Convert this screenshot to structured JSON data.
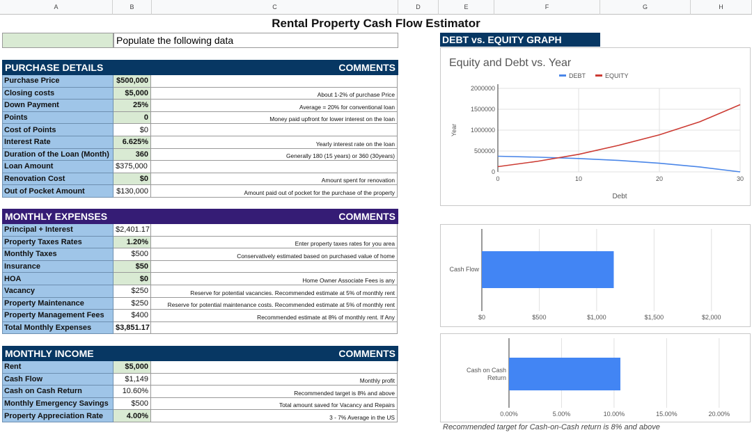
{
  "columns": [
    "A",
    "B",
    "C",
    "D",
    "E",
    "F",
    "G",
    "H"
  ],
  "title": "Rental Property Cash Flow Estimator",
  "populate_label": "Populate the following data",
  "graph_header": "DEBT vs. EQUITY GRAPH",
  "purchase": {
    "header": "PURCHASE DETAILS",
    "comments_header": "COMMENTS",
    "rows": [
      {
        "label": "Purchase Price",
        "value": "$500,000",
        "comment": "",
        "green": true
      },
      {
        "label": "Closing costs",
        "value": "$5,000",
        "comment": "About 1-2% of purchase Price",
        "green": true
      },
      {
        "label": "Down Payment",
        "value": "25%",
        "comment": "Average = 20% for conventional loan",
        "green": true
      },
      {
        "label": "Points",
        "value": "0",
        "comment": "Money paid upfront for lower interest on the loan",
        "green": true
      },
      {
        "label": "Cost of Points",
        "value": "$0",
        "comment": "",
        "green": false
      },
      {
        "label": "Interest Rate",
        "value": "6.625%",
        "comment": "Yearly interest rate on the loan",
        "green": true
      },
      {
        "label": "Duration of the Loan (Month)",
        "value": "360",
        "comment": "Generally 180 (15 years) or 360 (30years)",
        "green": true
      },
      {
        "label": "Loan Amount",
        "value": "$375,000",
        "comment": "",
        "green": false,
        "left": true
      },
      {
        "label": "Renovation Cost",
        "value": "$0",
        "comment": "Amount spent for renovation",
        "green": true
      },
      {
        "label": "Out of Pocket Amount",
        "value": "$130,000",
        "comment": "Amount paid out of pocket for the purchase of the property",
        "green": false
      }
    ]
  },
  "expenses": {
    "header": "MONTHLY EXPENSES",
    "comments_header": "COMMENTS",
    "rows": [
      {
        "label": "Principal + Interest",
        "value": "$2,401.17",
        "comment": "",
        "green": false,
        "left": true
      },
      {
        "label": "Property Taxes Rates",
        "value": "1.20%",
        "comment": "Enter property taxes rates for you area",
        "green": true
      },
      {
        "label": "Monthly Taxes",
        "value": "$500",
        "comment": "Conservatively estimated based on purchased value of home",
        "green": false
      },
      {
        "label": "Insurance",
        "value": "$50",
        "comment": "",
        "green": true
      },
      {
        "label": "HOA",
        "value": "$0",
        "comment": "Home Owner Associate Fees is any",
        "green": true
      },
      {
        "label": "Vacancy",
        "value": "$250",
        "comment": "Reserve for potential vacancies. Recommended estimate at 5% of monthly rent",
        "green": false
      },
      {
        "label": "Property Maintenance",
        "value": "$250",
        "comment": "Reserve for potential maintenance costs. Recommended estimate at 5% of monthly rent",
        "green": false
      },
      {
        "label": "Property Management Fees",
        "value": "$400",
        "comment": "Recommended estimate at 8% of monthly rent. If Any",
        "green": false
      },
      {
        "label": "Total Monthly Expenses",
        "value": "$3,851.17",
        "comment": "",
        "green": false,
        "bold": true,
        "left": true
      }
    ]
  },
  "income": {
    "header": "MONTHLY INCOME",
    "comments_header": "COMMENTS",
    "rows": [
      {
        "label": "Rent",
        "value": "$5,000",
        "comment": "",
        "green": true
      },
      {
        "label": "Cash Flow",
        "value": "$1,149",
        "comment": "Monthly profit",
        "green": false
      },
      {
        "label": "Cash on Cash Return",
        "value": "10.60%",
        "comment": "Recommended target is 8% and above",
        "green": false
      },
      {
        "label": "Monthly Emergency Savings",
        "value": "$500",
        "comment": "Total amount saved for Vacancy and Repairs",
        "green": false
      },
      {
        "label": "Property Appreciation Rate",
        "value": "4.00%",
        "comment": "3 - 7% Average in the US",
        "green": true
      }
    ]
  },
  "colors": {
    "debt": "#4a86e8",
    "equity": "#cc3b33",
    "bar": "#4285f4",
    "header_blue": "#073763",
    "header_purple": "#351c75",
    "label_blue": "#9fc5e8",
    "input_green": "#d9ead3"
  },
  "chart_data": [
    {
      "type": "line",
      "title": "Equity and Debt vs. Year",
      "xlabel": "Debt",
      "ylabel": "Year",
      "xlim": [
        0,
        30
      ],
      "ylim": [
        0,
        2000000
      ],
      "x_ticks": [
        "0",
        "10",
        "20",
        "30"
      ],
      "y_ticks": [
        "0",
        "500000",
        "1000000",
        "1500000",
        "2000000"
      ],
      "legend_position": "top",
      "x": [
        0,
        5,
        10,
        15,
        20,
        25,
        30
      ],
      "series": [
        {
          "name": "DEBT",
          "values": [
            375000,
            352000,
            320000,
            274000,
            208000,
            118000,
            0
          ]
        },
        {
          "name": "EQUITY",
          "values": [
            125000,
            256000,
            420000,
            638000,
            888000,
            1200000,
            1610000
          ]
        }
      ]
    },
    {
      "type": "bar",
      "orientation": "horizontal",
      "categories": [
        "Cash Flow"
      ],
      "values": [
        1149
      ],
      "xlim": [
        0,
        2250
      ],
      "x_ticks": [
        "$0",
        "$500",
        "$1,000",
        "$1,500",
        "$2,000"
      ]
    },
    {
      "type": "bar",
      "orientation": "horizontal",
      "categories": [
        "Cash on Cash Return"
      ],
      "values": [
        10.6
      ],
      "xlim": [
        0,
        22
      ],
      "x_ticks": [
        "0.00%",
        "5.00%",
        "10.00%",
        "15.00%",
        "20.00%"
      ]
    }
  ],
  "chart_note": "Recommended target for Cash-on-Cash return is 8% and above"
}
